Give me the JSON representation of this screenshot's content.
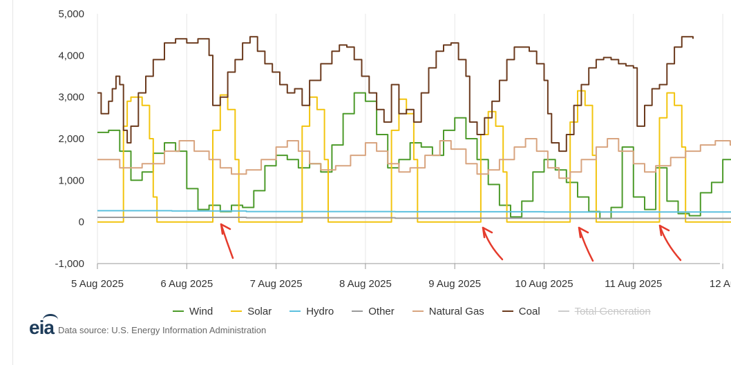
{
  "chart_data": {
    "type": "line",
    "title": "",
    "xlabel": "",
    "ylabel": "",
    "ylim": [
      -1000,
      5000
    ],
    "yticks": [
      "5,000",
      "4,000",
      "3,000",
      "2,000",
      "1,000",
      "0",
      "-1,000"
    ],
    "yticks_values": [
      5000,
      4000,
      3000,
      2000,
      1000,
      0,
      -1000
    ],
    "xticks": [
      "5 Aug 2025",
      "6 Aug 2025",
      "7 Aug 2025",
      "8 Aug 2025",
      "9 Aug 2025",
      "10 Aug 2025",
      "11 Aug 2025",
      "12 Au"
    ],
    "x_range_hours": [
      0,
      174
    ],
    "grid": "vertical",
    "legend_position": "bottom",
    "annotations": "four red hand-drawn arrows pointing at evening dips in wind generation on 6, 9, 10 and 11 Aug 2025",
    "series": [
      {
        "name": "Wind",
        "color": "#4c9a2a",
        "points": [
          [
            0,
            2150
          ],
          [
            3,
            2200
          ],
          [
            6,
            1700
          ],
          [
            9,
            1000
          ],
          [
            12,
            1200
          ],
          [
            15,
            1650
          ],
          [
            18,
            1900
          ],
          [
            21,
            1700
          ],
          [
            24,
            800
          ],
          [
            27,
            300
          ],
          [
            30,
            400
          ],
          [
            33,
            250
          ],
          [
            36,
            400
          ],
          [
            39,
            350
          ],
          [
            42,
            750
          ],
          [
            45,
            1350
          ],
          [
            48,
            1600
          ],
          [
            51,
            1500
          ],
          [
            54,
            1300
          ],
          [
            57,
            1400
          ],
          [
            60,
            1200
          ],
          [
            63,
            1850
          ],
          [
            66,
            2600
          ],
          [
            69,
            3100
          ],
          [
            72,
            2900
          ],
          [
            75,
            2100
          ],
          [
            78,
            1300
          ],
          [
            81,
            1500
          ],
          [
            84,
            1900
          ],
          [
            87,
            1800
          ],
          [
            90,
            1600
          ],
          [
            93,
            2200
          ],
          [
            96,
            2500
          ],
          [
            99,
            2000
          ],
          [
            102,
            1500
          ],
          [
            105,
            900
          ],
          [
            108,
            400
          ],
          [
            111,
            120
          ],
          [
            114,
            500
          ],
          [
            117,
            1200
          ],
          [
            120,
            1500
          ],
          [
            123,
            1250
          ],
          [
            126,
            950
          ],
          [
            129,
            600
          ],
          [
            132,
            250
          ],
          [
            135,
            80
          ],
          [
            138,
            350
          ],
          [
            141,
            1800
          ],
          [
            144,
            600
          ],
          [
            147,
            300
          ],
          [
            150,
            1300
          ],
          [
            153,
            500
          ],
          [
            156,
            200
          ],
          [
            159,
            150
          ],
          [
            162,
            700
          ],
          [
            165,
            950
          ],
          [
            168,
            1500
          ],
          [
            171,
            1300
          ],
          [
            174,
            1000
          ]
        ]
      },
      {
        "name": "Solar",
        "color": "#f2c40f",
        "points": [
          [
            0,
            0
          ],
          [
            6,
            0
          ],
          [
            7,
            2300
          ],
          [
            8,
            2900
          ],
          [
            9,
            3000
          ],
          [
            12,
            2800
          ],
          [
            14,
            2000
          ],
          [
            15,
            600
          ],
          [
            16,
            0
          ],
          [
            30,
            0
          ],
          [
            31,
            2200
          ],
          [
            33,
            3050
          ],
          [
            35,
            2700
          ],
          [
            37,
            1500
          ],
          [
            38,
            0
          ],
          [
            54,
            0
          ],
          [
            55,
            2300
          ],
          [
            57,
            3000
          ],
          [
            59,
            2700
          ],
          [
            61,
            1500
          ],
          [
            62,
            0
          ],
          [
            78,
            0
          ],
          [
            79,
            2200
          ],
          [
            81,
            2950
          ],
          [
            83,
            2600
          ],
          [
            85,
            1500
          ],
          [
            86,
            0
          ],
          [
            102,
            0
          ],
          [
            103,
            2100
          ],
          [
            105,
            2650
          ],
          [
            107,
            2300
          ],
          [
            109,
            1200
          ],
          [
            110,
            0
          ],
          [
            126,
            0
          ],
          [
            127,
            2400
          ],
          [
            129,
            3150
          ],
          [
            131,
            2800
          ],
          [
            133,
            1600
          ],
          [
            134,
            0
          ],
          [
            150,
            0
          ],
          [
            151,
            2500
          ],
          [
            153,
            3100
          ],
          [
            155,
            2800
          ],
          [
            157,
            1800
          ],
          [
            158,
            0
          ],
          [
            174,
            0
          ]
        ]
      },
      {
        "name": "Hydro",
        "color": "#5bc0de",
        "points": [
          [
            0,
            270
          ],
          [
            20,
            265
          ],
          [
            40,
            250
          ],
          [
            80,
            245
          ],
          [
            120,
            240
          ],
          [
            174,
            230
          ]
        ]
      },
      {
        "name": "Other",
        "color": "#999999",
        "points": [
          [
            0,
            110
          ],
          [
            40,
            100
          ],
          [
            80,
            90
          ],
          [
            120,
            85
          ],
          [
            174,
            80
          ]
        ]
      },
      {
        "name": "Natural Gas",
        "color": "#d8a47f",
        "points": [
          [
            0,
            1500
          ],
          [
            6,
            1300
          ],
          [
            12,
            1400
          ],
          [
            18,
            1700
          ],
          [
            22,
            1950
          ],
          [
            26,
            1700
          ],
          [
            30,
            1500
          ],
          [
            33,
            1300
          ],
          [
            36,
            1150
          ],
          [
            40,
            1250
          ],
          [
            44,
            1500
          ],
          [
            48,
            1800
          ],
          [
            51,
            1950
          ],
          [
            54,
            1700
          ],
          [
            57,
            1400
          ],
          [
            60,
            1250
          ],
          [
            64,
            1350
          ],
          [
            68,
            1600
          ],
          [
            72,
            1900
          ],
          [
            75,
            1700
          ],
          [
            78,
            1400
          ],
          [
            81,
            1200
          ],
          [
            84,
            1300
          ],
          [
            88,
            1600
          ],
          [
            92,
            1950
          ],
          [
            95,
            1750
          ],
          [
            99,
            1400
          ],
          [
            102,
            1150
          ],
          [
            105,
            1250
          ],
          [
            108,
            1500
          ],
          [
            112,
            1800
          ],
          [
            115,
            2000
          ],
          [
            118,
            1700
          ],
          [
            121,
            1300
          ],
          [
            124,
            1050
          ],
          [
            127,
            1200
          ],
          [
            130,
            1500
          ],
          [
            134,
            1800
          ],
          [
            137,
            2000
          ],
          [
            140,
            1700
          ],
          [
            144,
            1400
          ],
          [
            147,
            1200
          ],
          [
            150,
            1350
          ],
          [
            154,
            1550
          ],
          [
            158,
            1700
          ],
          [
            162,
            1850
          ],
          [
            166,
            1950
          ],
          [
            170,
            1850
          ],
          [
            174,
            1850
          ]
        ]
      },
      {
        "name": "Coal",
        "color": "#6b3a1d",
        "points": [
          [
            0,
            3100
          ],
          [
            1,
            2600
          ],
          [
            3,
            2900
          ],
          [
            4,
            3200
          ],
          [
            5,
            3500
          ],
          [
            6,
            3300
          ],
          [
            7,
            2200
          ],
          [
            8,
            1900
          ],
          [
            9,
            2300
          ],
          [
            11,
            3100
          ],
          [
            13,
            3500
          ],
          [
            15,
            3900
          ],
          [
            18,
            4300
          ],
          [
            21,
            4400
          ],
          [
            24,
            4300
          ],
          [
            27,
            4400
          ],
          [
            30,
            4000
          ],
          [
            31,
            2800
          ],
          [
            33,
            3000
          ],
          [
            35,
            3600
          ],
          [
            37,
            3900
          ],
          [
            39,
            4300
          ],
          [
            41,
            4450
          ],
          [
            43,
            4100
          ],
          [
            45,
            3800
          ],
          [
            47,
            3600
          ],
          [
            49,
            3300
          ],
          [
            51,
            3100
          ],
          [
            53,
            3200
          ],
          [
            55,
            2800
          ],
          [
            57,
            3400
          ],
          [
            60,
            3800
          ],
          [
            63,
            4100
          ],
          [
            65,
            4250
          ],
          [
            67,
            4200
          ],
          [
            69,
            3900
          ],
          [
            71,
            3500
          ],
          [
            73,
            3100
          ],
          [
            75,
            2700
          ],
          [
            77,
            2400
          ],
          [
            79,
            3300
          ],
          [
            81,
            2600
          ],
          [
            83,
            2700
          ],
          [
            85,
            2400
          ],
          [
            87,
            3100
          ],
          [
            89,
            3700
          ],
          [
            91,
            4100
          ],
          [
            93,
            4250
          ],
          [
            95,
            4300
          ],
          [
            97,
            3900
          ],
          [
            99,
            3500
          ],
          [
            100,
            2400
          ],
          [
            102,
            2100
          ],
          [
            104,
            2500
          ],
          [
            106,
            2900
          ],
          [
            108,
            3400
          ],
          [
            110,
            3900
          ],
          [
            112,
            4200
          ],
          [
            114,
            4200
          ],
          [
            116,
            4100
          ],
          [
            118,
            3800
          ],
          [
            120,
            3400
          ],
          [
            121,
            2600
          ],
          [
            122,
            1900
          ],
          [
            124,
            1700
          ],
          [
            126,
            2100
          ],
          [
            128,
            2800
          ],
          [
            130,
            3300
          ],
          [
            132,
            3700
          ],
          [
            134,
            3900
          ],
          [
            136,
            3950
          ],
          [
            138,
            3900
          ],
          [
            140,
            3800
          ],
          [
            142,
            3750
          ],
          [
            144,
            3700
          ],
          [
            145,
            2300
          ],
          [
            147,
            2800
          ],
          [
            149,
            3200
          ],
          [
            151,
            3300
          ],
          [
            153,
            3800
          ],
          [
            155,
            4200
          ],
          [
            157,
            4450
          ],
          [
            159,
            4450
          ],
          [
            160,
            4400
          ]
        ]
      }
    ]
  },
  "legend": {
    "items": [
      {
        "label": "Wind",
        "color": "#4c9a2a"
      },
      {
        "label": "Solar",
        "color": "#f2c40f"
      },
      {
        "label": "Hydro",
        "color": "#5bc0de"
      },
      {
        "label": "Other",
        "color": "#999999"
      },
      {
        "label": "Natural Gas",
        "color": "#d8a47f"
      },
      {
        "label": "Coal",
        "color": "#6b3a1d"
      },
      {
        "label": "Total Generation",
        "color": "#cccccc",
        "hidden": true
      }
    ]
  },
  "footer": {
    "logo": "eia",
    "source": "Data source: U.S. Energy Information Administration"
  },
  "annotation_color": "#e53b2c"
}
